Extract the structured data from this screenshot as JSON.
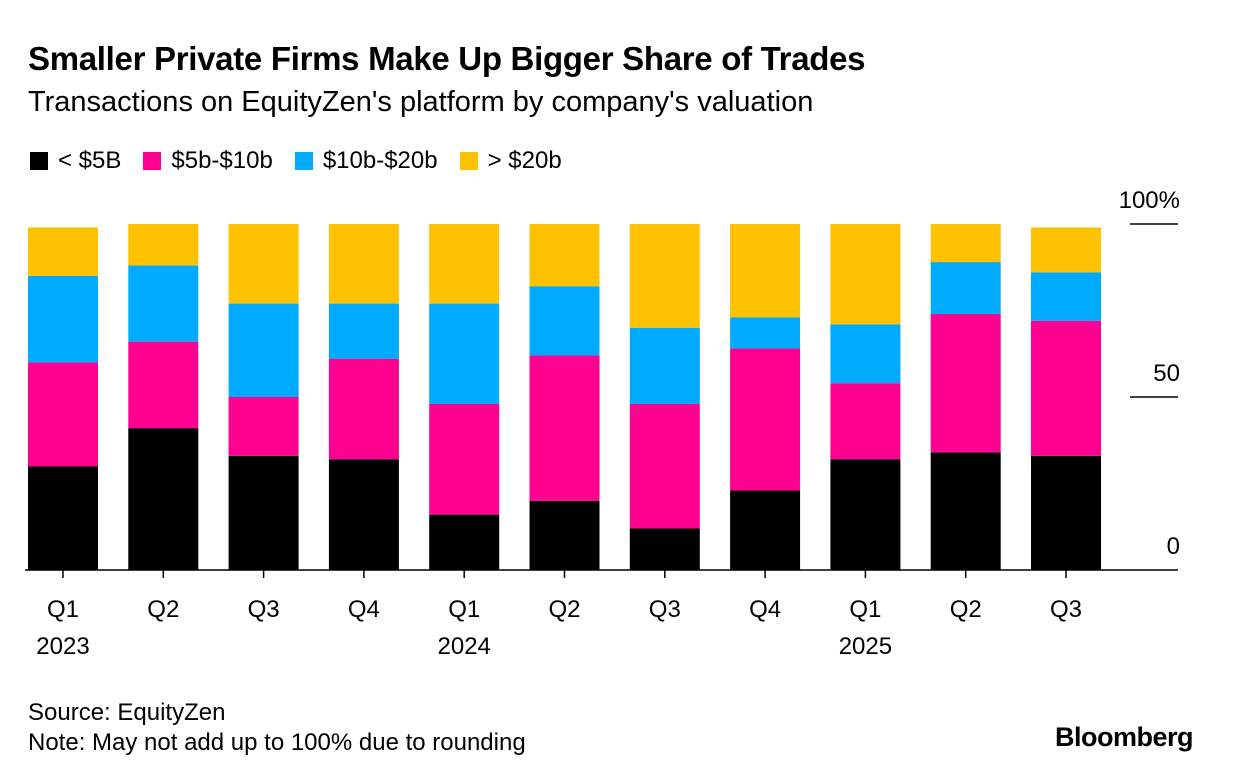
{
  "title": "Smaller Private Firms Make Up Bigger Share of Trades",
  "subtitle": "Transactions on EquityZen's platform by company's valuation",
  "source": "Source: EquityZen",
  "note": "Note: May not add up to 100% due to rounding",
  "brand": "Bloomberg",
  "chart_data": {
    "type": "bar",
    "stacked": true,
    "categories": [
      "Q1",
      "Q2",
      "Q3",
      "Q4",
      "Q1",
      "Q2",
      "Q3",
      "Q4",
      "Q1",
      "Q2",
      "Q3"
    ],
    "year_labels": [
      "2023",
      "",
      "",
      "",
      "2024",
      "",
      "",
      "",
      "2025",
      "",
      ""
    ],
    "series": [
      {
        "name": "< $5B",
        "color": "#000000",
        "values": [
          30,
          41,
          33,
          32,
          16,
          20,
          12,
          23,
          32,
          34,
          33
        ]
      },
      {
        "name": "$5b-$10b",
        "color": "#ff0090",
        "values": [
          30,
          25,
          17,
          29,
          32,
          42,
          36,
          41,
          22,
          40,
          39
        ]
      },
      {
        "name": "$10b-$20b",
        "color": "#00aaff",
        "values": [
          25,
          22,
          27,
          16,
          29,
          20,
          22,
          9,
          17,
          15,
          14
        ]
      },
      {
        "name": "> $20b",
        "color": "#ffc200",
        "values": [
          14,
          12,
          23,
          23,
          23,
          18,
          30,
          27,
          29,
          11,
          13
        ]
      }
    ],
    "y_ticks": [
      {
        "value": 0,
        "label": "0"
      },
      {
        "value": 50,
        "label": "50"
      },
      {
        "value": 100,
        "label": "100%"
      }
    ],
    "ylim": [
      0,
      100
    ],
    "xlabel": "",
    "ylabel": "",
    "legend_position": "top-left",
    "grid": false
  }
}
